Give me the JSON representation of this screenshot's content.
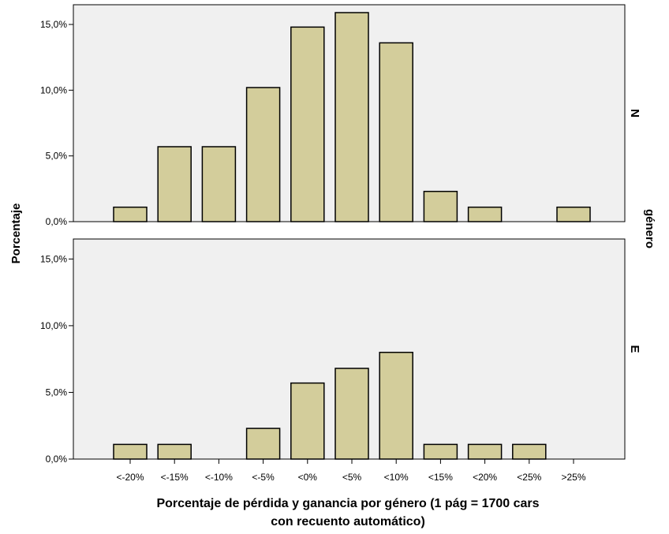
{
  "chart_data": {
    "type": "bar",
    "categories": [
      "<-20%",
      "<-15%",
      "<-10%",
      "<-5%",
      "<0%",
      "<5%",
      "<10%",
      "<15%",
      "<20%",
      "<25%",
      ">25%"
    ],
    "panels": [
      {
        "label": "N",
        "values": [
          1.1,
          5.7,
          5.7,
          10.2,
          14.8,
          15.9,
          13.6,
          2.3,
          1.1,
          0,
          1.1
        ]
      },
      {
        "label": "E",
        "values": [
          1.1,
          1.1,
          0,
          2.3,
          5.7,
          6.8,
          8.0,
          1.1,
          1.1,
          1.1,
          0
        ]
      }
    ],
    "ylabel": "Porcentaje",
    "panel_axis_label": "género",
    "xlabel_lines": [
      "Porcentaje de pérdida y ganancia por género (1 pág = 1700 cars",
      "con recuento automático)"
    ],
    "ylim": [
      0,
      16.5
    ],
    "yticks": [
      0,
      5,
      10,
      15
    ],
    "ytick_labels": [
      "0,0%",
      "5,0%",
      "10,0%",
      "15,0%"
    ],
    "grid": false,
    "colors": {
      "bar_fill": "#d3cd9b",
      "bar_stroke": "#000000",
      "panel_bg": "#f0f0f0",
      "panel_border": "#000000"
    }
  }
}
